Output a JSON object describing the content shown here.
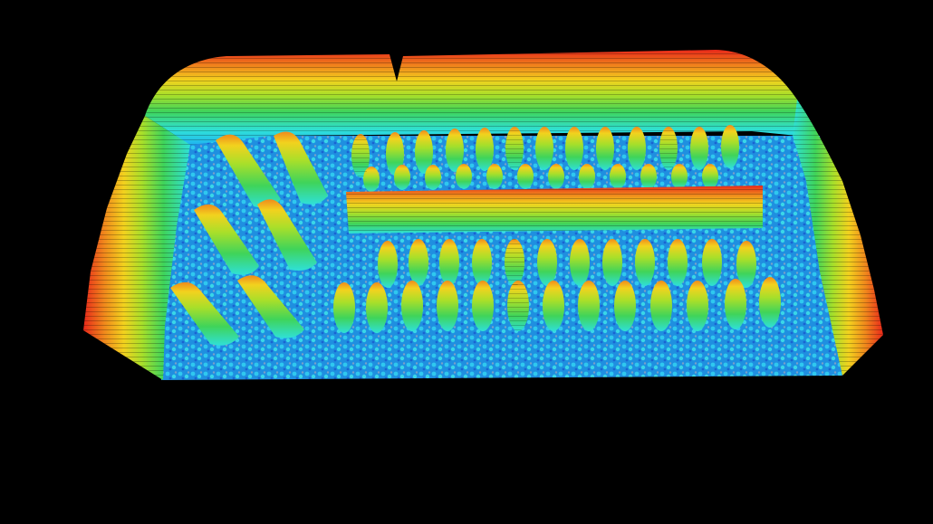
{
  "scene": {
    "background": "#000000",
    "colormap": [
      "#1e5bd6",
      "#20b4f0",
      "#2fe0d8",
      "#3fd45a",
      "#a8df2a",
      "#f2d21e",
      "#f08a1c",
      "#e8281a"
    ],
    "contour_lines": true,
    "structures": {
      "outer_wall": "rounded-rectangle",
      "center_wall": "horizontal-bar",
      "pillar_groups": [
        {
          "label": "left-block",
          "rows": 3,
          "cols": 2
        },
        {
          "label": "top-row-back",
          "rows": 1,
          "cols": 13
        },
        {
          "label": "top-row-front",
          "rows": 1,
          "cols": 12
        },
        {
          "label": "bottom-row-back",
          "rows": 1,
          "cols": 12
        },
        {
          "label": "bottom-row-front",
          "rows": 1,
          "cols": 13
        }
      ]
    }
  }
}
